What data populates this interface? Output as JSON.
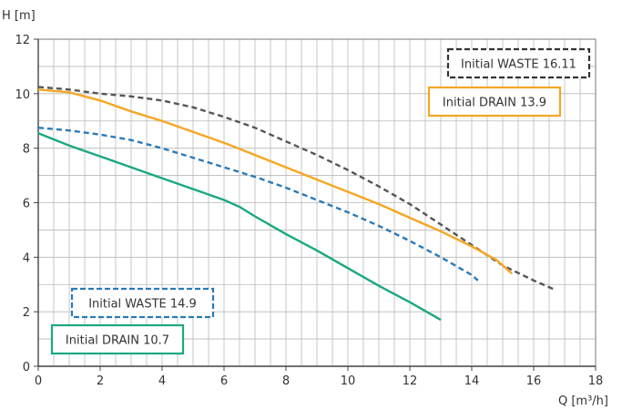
{
  "chart_data": {
    "type": "line",
    "xlabel": "Q [m³/h]",
    "ylabel": "H [m]",
    "xlim": [
      0,
      18
    ],
    "ylim": [
      0,
      12
    ],
    "x_major_ticks": [
      0,
      2,
      4,
      6,
      8,
      10,
      12,
      14,
      16,
      18
    ],
    "y_major_ticks": [
      0,
      2,
      4,
      6,
      8,
      10,
      12
    ],
    "x_minor_step": 0.5,
    "y_minor_step": 1,
    "grid": true,
    "series": [
      {
        "name": "Initial WASTE 16.11",
        "color": "#555555",
        "dash": true,
        "x": [
          0,
          1,
          2,
          3,
          4,
          5,
          6,
          7,
          8,
          9,
          10,
          11,
          12,
          13,
          14,
          15,
          16,
          16.7
        ],
        "y": [
          10.25,
          10.15,
          10.0,
          9.9,
          9.75,
          9.5,
          9.15,
          8.75,
          8.25,
          7.75,
          7.2,
          6.6,
          5.95,
          5.2,
          4.45,
          3.7,
          3.15,
          2.8
        ]
      },
      {
        "name": "Initial DRAIN 13.9",
        "color": "#f5a623",
        "dash": false,
        "x": [
          0,
          1,
          2,
          3,
          4,
          5,
          6,
          7,
          8,
          9,
          10,
          11,
          12,
          13,
          14,
          14.8,
          15.3
        ],
        "y": [
          10.15,
          10.05,
          9.75,
          9.35,
          9.0,
          8.6,
          8.2,
          7.75,
          7.3,
          6.85,
          6.4,
          5.95,
          5.45,
          4.95,
          4.4,
          3.9,
          3.4
        ]
      },
      {
        "name": "Initial WASTE 14.9",
        "color": "#2a7ab8",
        "dash": true,
        "x": [
          0,
          1,
          2,
          3,
          4,
          5,
          6,
          7,
          8,
          9,
          10,
          11,
          12,
          13,
          14,
          14.2
        ],
        "y": [
          8.75,
          8.65,
          8.5,
          8.3,
          8.0,
          7.65,
          7.3,
          6.95,
          6.55,
          6.1,
          5.65,
          5.15,
          4.6,
          4.0,
          3.35,
          3.15
        ]
      },
      {
        "name": "Initial DRAIN 10.7",
        "color": "#1aa882",
        "dash": false,
        "x": [
          0,
          1,
          2,
          3,
          4,
          5,
          6,
          6.5,
          7,
          8,
          9,
          10,
          11,
          12,
          13
        ],
        "y": [
          8.55,
          8.1,
          7.7,
          7.3,
          6.9,
          6.5,
          6.1,
          5.85,
          5.5,
          4.85,
          4.25,
          3.6,
          2.95,
          2.35,
          1.7
        ]
      }
    ],
    "legend": [
      {
        "label": "Initial WASTE 16.11",
        "color": "#333333",
        "dash": true,
        "placement": "top-right"
      },
      {
        "label": "Initial DRAIN 13.9",
        "color": "#f5a623",
        "dash": false,
        "placement": "top-right"
      },
      {
        "label": "Initial WASTE 14.9",
        "color": "#2a7ab8",
        "dash": true,
        "placement": "bottom-left"
      },
      {
        "label": "Initial DRAIN 10.7",
        "color": "#1aa882",
        "dash": false,
        "placement": "bottom-left"
      }
    ]
  }
}
